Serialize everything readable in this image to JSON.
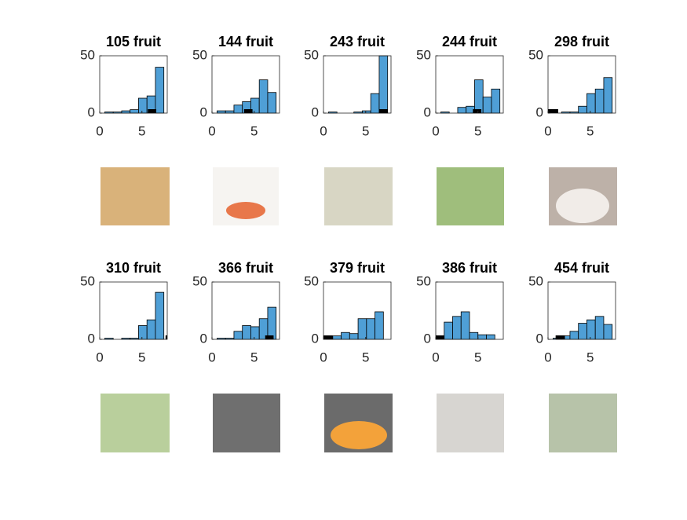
{
  "chart_data": [
    {
      "type": "histogram",
      "title": "105 fruit",
      "bins": [
        0.6,
        1.6,
        2.6,
        3.6,
        4.6,
        5.6,
        6.6,
        7.6
      ],
      "values": [
        1,
        1,
        2,
        3,
        13,
        15,
        40
      ],
      "marker": [
        5.7,
        6.7
      ],
      "color": "#4f9fd6",
      "xlim": [
        0,
        8
      ],
      "ylim": [
        0,
        50
      ],
      "xticks": [
        0,
        5
      ],
      "yticks": [
        0,
        50
      ]
    },
    {
      "type": "histogram",
      "title": "144 fruit",
      "bins": [
        0.6,
        1.6,
        2.6,
        3.6,
        4.6,
        5.6,
        6.6,
        7.6
      ],
      "values": [
        2,
        2,
        7,
        10,
        13,
        29,
        18
      ],
      "marker": [
        3.8,
        4.8
      ],
      "color": "#4f9fd6",
      "xlim": [
        0,
        8
      ],
      "ylim": [
        0,
        50
      ],
      "xticks": [
        0,
        5
      ],
      "yticks": [
        0,
        50
      ]
    },
    {
      "type": "histogram",
      "title": "243 fruit",
      "bins": [
        0.6,
        1.6,
        2.6,
        3.6,
        4.6,
        5.6,
        6.6,
        7.6
      ],
      "values": [
        1,
        0,
        0,
        1,
        2,
        17,
        50
      ],
      "marker": [
        6.6,
        7.6
      ],
      "color": "#4f9fd6",
      "xlim": [
        0,
        8
      ],
      "ylim": [
        0,
        50
      ],
      "xticks": [
        0,
        5
      ],
      "yticks": [
        0,
        50
      ]
    },
    {
      "type": "histogram",
      "title": "244 fruit",
      "bins": [
        0.6,
        1.6,
        2.6,
        3.6,
        4.6,
        5.6,
        6.6,
        7.6
      ],
      "values": [
        1,
        0,
        5,
        6,
        29,
        14,
        21
      ],
      "marker": [
        4.4,
        5.4
      ],
      "color": "#4f9fd6",
      "xlim": [
        0,
        8
      ],
      "ylim": [
        0,
        50
      ],
      "xticks": [
        0,
        5
      ],
      "yticks": [
        0,
        50
      ]
    },
    {
      "type": "histogram",
      "title": "298 fruit",
      "bins": [
        0.6,
        1.6,
        2.6,
        3.6,
        4.6,
        5.6,
        6.6,
        7.6
      ],
      "values": [
        0,
        1,
        1,
        6,
        17,
        21,
        31
      ],
      "marker": [
        0,
        1.2
      ],
      "color": "#4f9fd6",
      "xlim": [
        0,
        8
      ],
      "ylim": [
        0,
        50
      ],
      "xticks": [
        0,
        5
      ],
      "yticks": [
        0,
        50
      ]
    },
    {
      "type": "histogram",
      "title": "310 fruit",
      "bins": [
        0.6,
        1.6,
        2.6,
        3.6,
        4.6,
        5.6,
        6.6,
        7.6
      ],
      "values": [
        1,
        0,
        1,
        1,
        12,
        17,
        41
      ],
      "marker": [
        7.8,
        8
      ],
      "color": "#4f9fd6",
      "xlim": [
        0,
        8
      ],
      "ylim": [
        0,
        50
      ],
      "xticks": [
        0,
        5
      ],
      "yticks": [
        0,
        50
      ]
    },
    {
      "type": "histogram",
      "title": "366 fruit",
      "bins": [
        0.6,
        1.6,
        2.6,
        3.6,
        4.6,
        5.6,
        6.6,
        7.6
      ],
      "values": [
        1,
        1,
        7,
        12,
        11,
        18,
        28
      ],
      "marker": [
        6.3,
        7.3
      ],
      "color": "#4f9fd6",
      "xlim": [
        0,
        8
      ],
      "ylim": [
        0,
        50
      ],
      "xticks": [
        0,
        5
      ],
      "yticks": [
        0,
        50
      ]
    },
    {
      "type": "histogram",
      "title": "379 fruit",
      "bins": [
        0,
        1.1,
        2.1,
        3.1,
        4.1,
        5.1,
        6.1,
        7.1
      ],
      "values": [
        2,
        3,
        6,
        5,
        18,
        18,
        24
      ],
      "marker": [
        0,
        1.1
      ],
      "color": "#4f9fd6",
      "xlim": [
        0,
        8
      ],
      "ylim": [
        0,
        50
      ],
      "xticks": [
        0,
        5
      ],
      "yticks": [
        0,
        50
      ]
    },
    {
      "type": "histogram",
      "title": "386 fruit",
      "bins": [
        0,
        1,
        2,
        3,
        4,
        5,
        6,
        7
      ],
      "values": [
        1,
        15,
        20,
        24,
        6,
        4,
        4
      ],
      "marker": [
        0,
        1
      ],
      "color": "#4f9fd6",
      "xlim": [
        0,
        8
      ],
      "ylim": [
        0,
        50
      ],
      "xticks": [
        0,
        5
      ],
      "yticks": [
        0,
        50
      ]
    },
    {
      "type": "histogram",
      "title": "454 fruit",
      "bins": [
        0.6,
        1.6,
        2.6,
        3.6,
        4.6,
        5.6,
        6.6,
        7.6
      ],
      "values": [
        1,
        3,
        7,
        14,
        17,
        20,
        13
      ],
      "marker": [
        0.9,
        2
      ],
      "color": "#4f9fd6",
      "xlim": [
        0,
        8
      ],
      "ylim": [
        0,
        50
      ],
      "xticks": [
        0,
        5
      ],
      "yticks": [
        0,
        50
      ]
    }
  ]
}
